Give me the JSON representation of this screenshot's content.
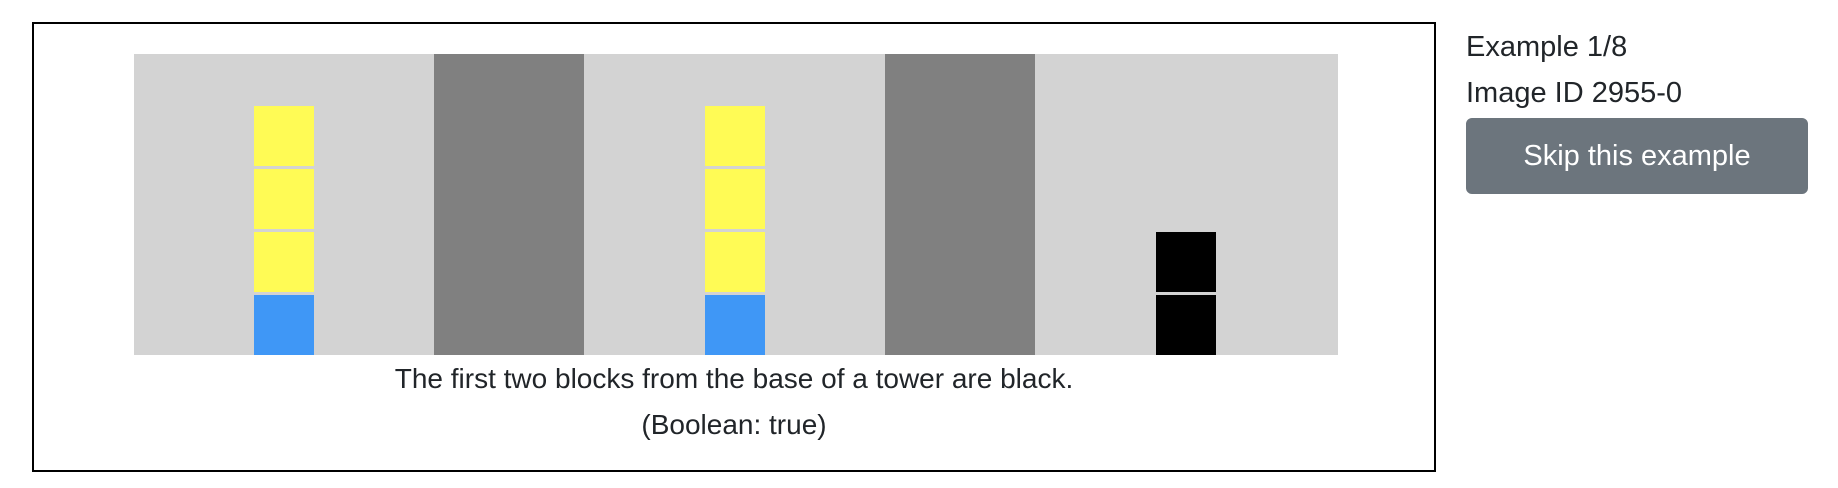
{
  "example": {
    "counter_text": "Example 1/8",
    "image_id_text": "Image ID 2955-0",
    "skip_label": "Skip this example"
  },
  "image": {
    "caption": "The first two blocks from the base of a tower are black.",
    "truth_label": "(Boolean: true)",
    "colors": {
      "background": "#d3d3d3",
      "separator": "#808080",
      "yellow": "#fffb55",
      "blue": "#3f97f6",
      "black": "#000000"
    },
    "boxes": [
      {
        "name": "box-1",
        "towers": [
          {
            "blocks_bottom_to_top": [
              "blue",
              "yellow",
              "yellow",
              "yellow"
            ]
          }
        ]
      },
      {
        "name": "box-2",
        "towers": [
          {
            "blocks_bottom_to_top": [
              "blue",
              "yellow",
              "yellow",
              "yellow"
            ]
          }
        ]
      },
      {
        "name": "box-3",
        "towers": [
          {
            "blocks_bottom_to_top": [
              "black",
              "black"
            ]
          }
        ]
      }
    ]
  }
}
